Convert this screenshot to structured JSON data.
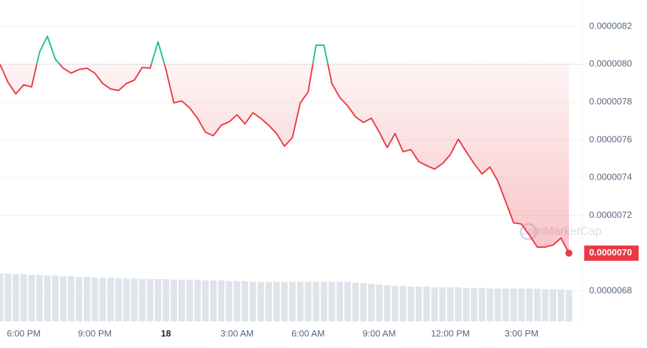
{
  "chart_data": {
    "type": "line",
    "categories": [
      null,
      null,
      null,
      "6:00 PM",
      null,
      null,
      null,
      null,
      null,
      null,
      null,
      null,
      "9:00 PM",
      null,
      null,
      null,
      null,
      null,
      null,
      null,
      null,
      "18",
      null,
      null,
      null,
      null,
      null,
      null,
      null,
      null,
      "3:00 AM",
      null,
      null,
      null,
      null,
      null,
      null,
      null,
      null,
      "6:00 AM",
      null,
      null,
      null,
      null,
      null,
      null,
      null,
      null,
      "9:00 AM",
      null,
      null,
      null,
      null,
      null,
      null,
      null,
      null,
      "12:00 PM",
      null,
      null,
      null,
      null,
      null,
      null,
      null,
      null,
      "3:00 PM",
      null,
      null,
      null,
      null,
      null,
      null
    ],
    "values": [
      8e-06,
      7.905e-06,
      7.843e-06,
      7.891e-06,
      7.88e-06,
      8.064e-06,
      8.148e-06,
      8.027e-06,
      7.979e-06,
      7.953e-06,
      7.972e-06,
      7.979e-06,
      7.953e-06,
      7.898e-06,
      7.869e-06,
      7.861e-06,
      7.898e-06,
      7.916e-06,
      7.983e-06,
      7.979e-06,
      8.119e-06,
      7.972e-06,
      7.795e-06,
      7.806e-06,
      7.769e-06,
      7.714e-06,
      7.64e-06,
      7.622e-06,
      7.677e-06,
      7.695e-06,
      7.732e-06,
      7.684e-06,
      7.743e-06,
      7.714e-06,
      7.677e-06,
      7.633e-06,
      7.566e-06,
      7.611e-06,
      7.795e-06,
      7.854e-06,
      8.101e-06,
      8.101e-06,
      7.898e-06,
      7.824e-06,
      7.78e-06,
      7.721e-06,
      7.692e-06,
      7.714e-06,
      7.64e-06,
      7.559e-06,
      7.633e-06,
      7.537e-06,
      7.548e-06,
      7.485e-06,
      7.463e-06,
      7.445e-06,
      7.474e-06,
      7.522e-06,
      7.603e-06,
      7.537e-06,
      7.474e-06,
      7.419e-06,
      7.456e-06,
      7.382e-06,
      7.272e-06,
      7.161e-06,
      7.154e-06,
      7.095e-06,
      7.032e-06,
      7.032e-06,
      7.043e-06,
      7.08e-06,
      7e-06
    ],
    "volume": [
      70,
      70,
      69,
      69,
      68,
      68,
      67,
      67,
      66,
      66,
      65,
      65,
      64,
      64,
      64,
      63,
      63,
      63,
      62,
      62,
      62,
      62,
      61,
      61,
      61,
      61,
      60,
      60,
      60,
      59,
      59,
      59,
      58,
      58,
      58,
      58,
      58,
      58,
      58,
      58,
      58,
      58,
      58,
      58,
      58,
      57,
      56,
      55,
      54,
      53,
      52,
      52,
      51,
      51,
      51,
      50,
      50,
      50,
      50,
      49,
      49,
      49,
      48,
      48,
      48,
      48,
      48,
      48,
      48,
      47,
      47,
      47,
      46
    ],
    "baseline": 8e-06,
    "up_color": "#16c784",
    "down_color": "#ea3943",
    "volume_color": "#dfe3ea",
    "ylim": [
      6.638e-06,
      8.34e-06
    ],
    "yticks": [
      {
        "value": 8.2e-06,
        "label": "0.0000082"
      },
      {
        "value": 8e-06,
        "label": "0.0000080"
      },
      {
        "value": 7.8e-06,
        "label": "0.0000078"
      },
      {
        "value": 7.6e-06,
        "label": "0.0000076"
      },
      {
        "value": 7.4e-06,
        "label": "0.0000074"
      },
      {
        "value": 7.2e-06,
        "label": "0.0000072"
      },
      {
        "value": 6.8e-06,
        "label": "0.0000068"
      }
    ],
    "last_price": {
      "value": 7e-06,
      "label": "0.0000070"
    },
    "watermark": "CoinMarketCap",
    "grid": true
  }
}
